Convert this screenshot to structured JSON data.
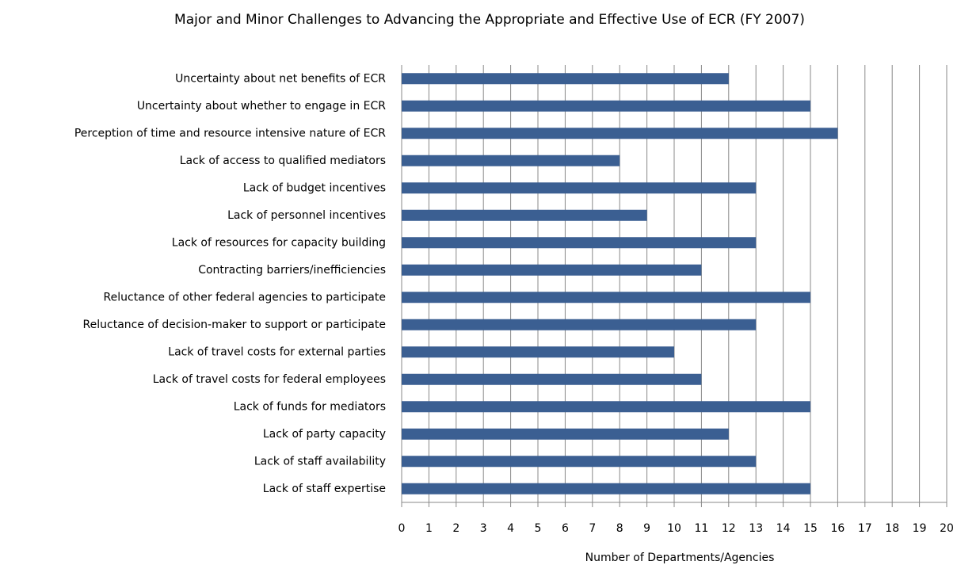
{
  "chart_data": {
    "type": "bar",
    "orientation": "horizontal",
    "title": "Major and Minor Challenges to Advancing the Appropriate and Effective Use of ECR (FY 2007)",
    "x_label": "Number of Departments/Agencies",
    "categories": [
      "Uncertainty about net benefits of ECR",
      "Uncertainty about whether to engage in ECR",
      "Perception of time and resource intensive nature of ECR",
      "Lack of access to qualified mediators",
      "Lack of budget incentives",
      "Lack of personnel incentives",
      "Lack of resources for capacity building",
      "Contracting barriers/inefficiencies",
      "Reluctance of other federal agencies to participate",
      "Reluctance of decision-maker to support or participate",
      "Lack of travel costs for external parties",
      "Lack of travel costs for federal employees",
      "Lack of funds for mediators",
      "Lack of party capacity",
      "Lack of staff availability",
      "Lack of staff expertise"
    ],
    "values": [
      12,
      15,
      16,
      8,
      13,
      9,
      13,
      11,
      15,
      13,
      10,
      11,
      15,
      12,
      13,
      15
    ],
    "color": "#3b5f92",
    "xlim": [
      0,
      20
    ],
    "xticks": [
      0,
      1,
      2,
      3,
      4,
      5,
      6,
      7,
      8,
      9,
      10,
      11,
      12,
      13,
      14,
      15,
      16,
      17,
      18,
      19,
      20
    ],
    "grid": true
  }
}
